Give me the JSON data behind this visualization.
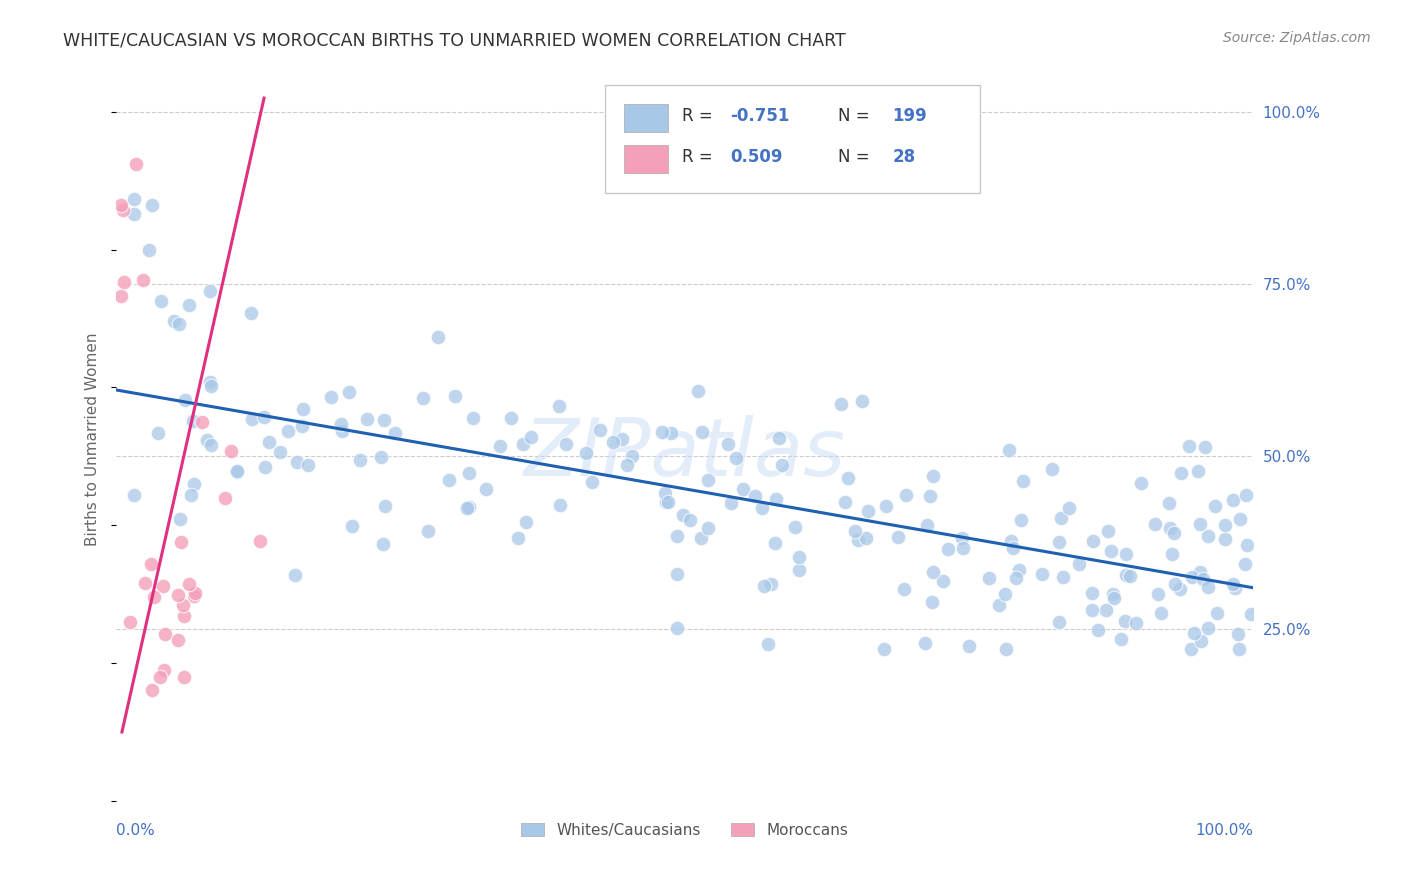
{
  "title": "WHITE/CAUCASIAN VS MOROCCAN BIRTHS TO UNMARRIED WOMEN CORRELATION CHART",
  "source": "Source: ZipAtlas.com",
  "ylabel": "Births to Unmarried Women",
  "watermark": "ZIPatlas",
  "blue_R": -0.751,
  "blue_N": 199,
  "pink_R": 0.509,
  "pink_N": 28,
  "blue_color": "#a8c8e8",
  "pink_color": "#f4a0b8",
  "blue_line_color": "#2060b0",
  "pink_line_color": "#e03080",
  "bg_color": "#ffffff",
  "grid_color": "#cccccc",
  "right_tick_color": "#4472c4",
  "title_color": "#333333",
  "source_color": "#888888",
  "xlim": [
    0.0,
    1.0
  ],
  "ylim": [
    0.0,
    1.05
  ],
  "right_yticks": [
    0.25,
    0.5,
    0.75,
    1.0
  ],
  "right_yticklabels": [
    "25.0%",
    "50.0%",
    "75.0%",
    "100.0%"
  ],
  "seed": 17
}
